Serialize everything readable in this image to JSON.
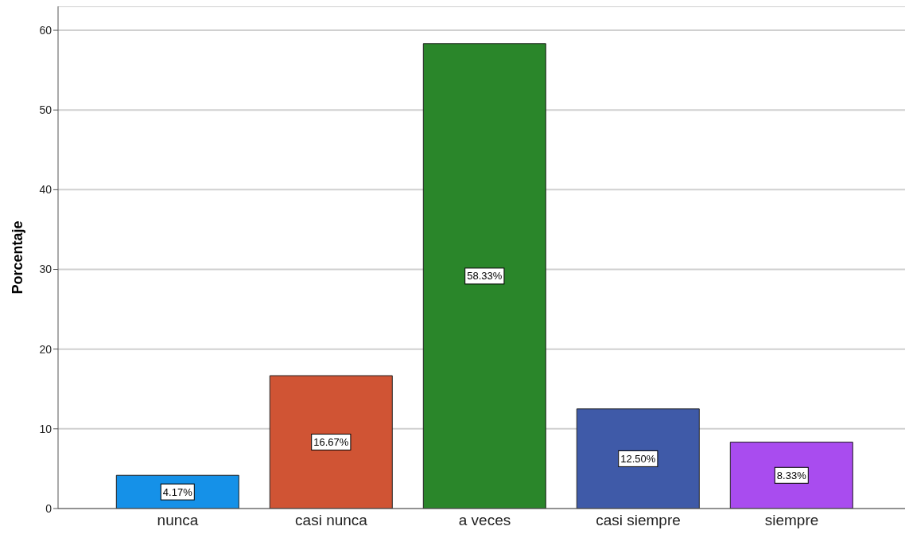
{
  "chart_data": {
    "type": "bar",
    "ylabel": "Porcentaje",
    "categories": [
      "nunca",
      "casi nunca",
      "a veces",
      "casi siempre",
      "siempre"
    ],
    "values": [
      4.17,
      16.67,
      58.33,
      12.5,
      8.33
    ],
    "colors": [
      "#1591e8",
      "#d05434",
      "#2a862a",
      "#3f5aa8",
      "#a94cef"
    ],
    "value_labels": [
      "4.17%",
      "16.67%",
      "58.33%",
      "12.50%",
      "8.33%"
    ],
    "ylim": [
      0,
      63
    ],
    "yticks": [
      0,
      10,
      20,
      30,
      40,
      50,
      60
    ],
    "grid": "y"
  }
}
